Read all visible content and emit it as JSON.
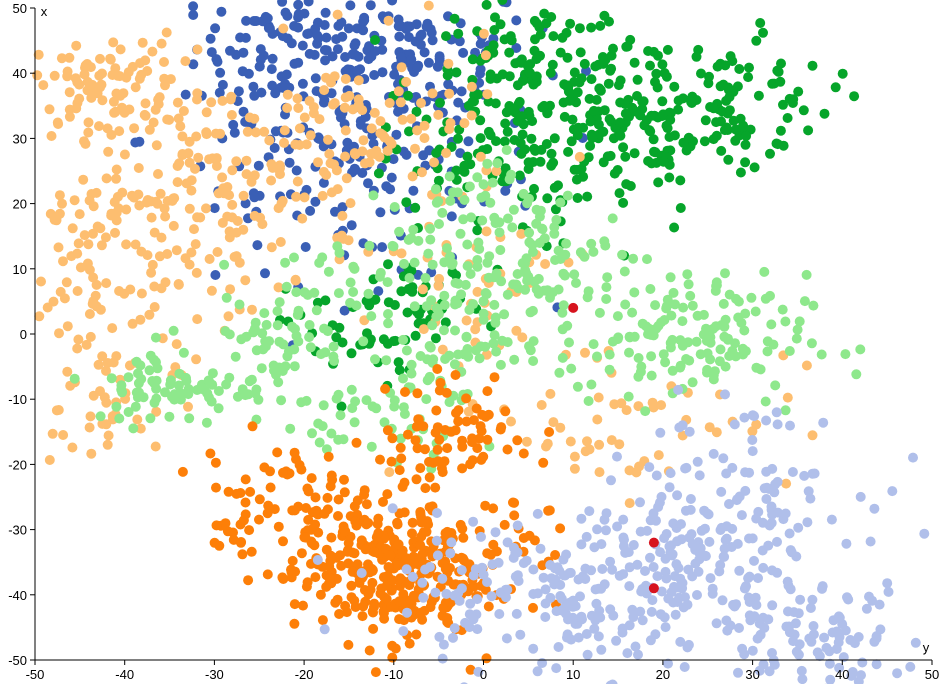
{
  "chart_data": {
    "type": "scatter",
    "xlabel": "y",
    "ylabel": "x",
    "xlim": [
      -50,
      50
    ],
    "ylim": [
      -50,
      50
    ],
    "x_ticks": [
      -50,
      -40,
      -30,
      -20,
      -10,
      0,
      10,
      20,
      30,
      40,
      50
    ],
    "y_ticks": [
      -50,
      -40,
      -30,
      -20,
      -10,
      0,
      10,
      20,
      30,
      40,
      50
    ],
    "x_tick_labels": [
      "-50",
      "-40",
      "-30",
      "-20",
      "-10",
      "0",
      "10",
      "20",
      "30",
      "40",
      "50"
    ],
    "y_tick_labels": [
      "-50",
      "-40",
      "-30",
      "-20",
      "-10",
      "0",
      "10",
      "20",
      "30",
      "40",
      "50"
    ],
    "grid": false,
    "legend": "none",
    "series": [
      {
        "color": "#3a5fb5",
        "clusters": [
          {
            "cx": -20,
            "cy": 44,
            "sx": 6,
            "sy": 5,
            "n": 120
          },
          {
            "cx": -8,
            "cy": 42,
            "sx": 7,
            "sy": 6,
            "n": 130
          },
          {
            "cx": -12,
            "cy": 22,
            "sx": 9,
            "sy": 7,
            "n": 90
          },
          {
            "cx": -22,
            "cy": 30,
            "sx": 8,
            "sy": 8,
            "n": 50
          }
        ]
      },
      {
        "color": "#06a52a",
        "clusters": [
          {
            "cx": 5,
            "cy": 38,
            "sx": 6,
            "sy": 7,
            "n": 150
          },
          {
            "cx": 17,
            "cy": 32,
            "sx": 7,
            "sy": 7,
            "n": 140
          },
          {
            "cx": 27,
            "cy": 36,
            "sx": 6,
            "sy": 5,
            "n": 80
          },
          {
            "cx": 0,
            "cy": 25,
            "sx": 6,
            "sy": 6,
            "n": 60
          },
          {
            "cx": -14,
            "cy": 0,
            "sx": 4,
            "sy": 5,
            "n": 40
          },
          {
            "cx": -6,
            "cy": 4,
            "sx": 3,
            "sy": 3,
            "n": 30
          }
        ]
      },
      {
        "color": "#fdbe70",
        "clusters": [
          {
            "cx": -42,
            "cy": 38,
            "sx": 4,
            "sy": 4,
            "n": 80
          },
          {
            "cx": -30,
            "cy": 22,
            "sx": 8,
            "sy": 9,
            "n": 160
          },
          {
            "cx": -42,
            "cy": 10,
            "sx": 5,
            "sy": 10,
            "n": 100
          },
          {
            "cx": -13,
            "cy": 30,
            "sx": 8,
            "sy": 7,
            "n": 110
          },
          {
            "cx": -42,
            "cy": -10,
            "sx": 4,
            "sy": 6,
            "n": 40
          },
          {
            "cx": 0,
            "cy": 8,
            "sx": 5,
            "sy": 5,
            "n": 40
          },
          {
            "cx": 15,
            "cy": -12,
            "sx": 10,
            "sy": 6,
            "n": 60
          }
        ]
      },
      {
        "color": "#8ee88c",
        "clusters": [
          {
            "cx": 22,
            "cy": -1,
            "sx": 7,
            "sy": 5,
            "n": 150
          },
          {
            "cx": -8,
            "cy": 8,
            "sx": 8,
            "sy": 5,
            "n": 90
          },
          {
            "cx": 8,
            "cy": 10,
            "sx": 6,
            "sy": 6,
            "n": 80
          },
          {
            "cx": -34,
            "cy": -8,
            "sx": 5,
            "sy": 3,
            "n": 80
          },
          {
            "cx": -23,
            "cy": -1,
            "sx": 4,
            "sy": 3,
            "n": 50
          },
          {
            "cx": -5,
            "cy": -4,
            "sx": 4,
            "sy": 4,
            "n": 50
          },
          {
            "cx": -12,
            "cy": -14,
            "sx": 6,
            "sy": 3,
            "n": 40
          },
          {
            "cx": 0,
            "cy": 20,
            "sx": 5,
            "sy": 4,
            "n": 40
          }
        ]
      },
      {
        "color": "#fd7f08",
        "clusters": [
          {
            "cx": -11,
            "cy": -37,
            "sx": 5,
            "sy": 5,
            "n": 240
          },
          {
            "cx": -18,
            "cy": -31,
            "sx": 6,
            "sy": 6,
            "n": 80
          },
          {
            "cx": -2,
            "cy": -30,
            "sx": 6,
            "sy": 7,
            "n": 90
          },
          {
            "cx": -3,
            "cy": -14,
            "sx": 4,
            "sy": 4,
            "n": 60
          },
          {
            "cx": -24,
            "cy": -24,
            "sx": 4,
            "sy": 4,
            "n": 40
          }
        ]
      },
      {
        "color": "#b0bfea",
        "clusters": [
          {
            "cx": 8,
            "cy": -40,
            "sx": 9,
            "sy": 6,
            "n": 190
          },
          {
            "cx": 25,
            "cy": -35,
            "sx": 8,
            "sy": 8,
            "n": 170
          },
          {
            "cx": 37,
            "cy": -46,
            "sx": 6,
            "sy": 4,
            "n": 80
          },
          {
            "cx": 30,
            "cy": -22,
            "sx": 6,
            "sy": 5,
            "n": 50
          }
        ]
      }
    ],
    "highlight_points": [
      {
        "x": 10,
        "y": 4,
        "color": "#d7131e"
      },
      {
        "x": 19,
        "y": -32,
        "color": "#d7131e"
      },
      {
        "x": 19,
        "y": -39,
        "color": "#d7131e"
      }
    ]
  }
}
